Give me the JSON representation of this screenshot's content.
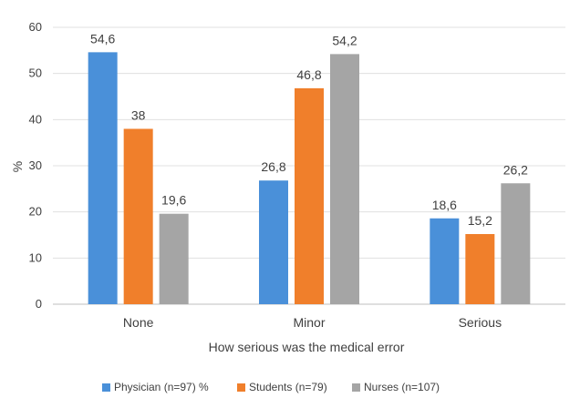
{
  "chart_data": {
    "type": "bar",
    "categories": [
      "None",
      "Minor",
      "Serious"
    ],
    "series": [
      {
        "name": "Physician (n=97) %",
        "values": [
          54.6,
          26.8,
          18.6
        ],
        "labels": [
          "54,6",
          "26,8",
          "18,6"
        ],
        "color": "#4a90d9"
      },
      {
        "name": "Students (n=79)",
        "values": [
          38,
          46.8,
          15.2
        ],
        "labels": [
          "38",
          "46,8",
          "15,2"
        ],
        "color": "#f07f2b"
      },
      {
        "name": "Nurses (n=107)",
        "values": [
          19.6,
          54.2,
          26.2
        ],
        "labels": [
          "19,6",
          "54,2",
          "26,2"
        ],
        "color": "#a5a5a5"
      }
    ],
    "xlabel": "How serious was the medical error",
    "ylabel": "%",
    "ylim": [
      0,
      60
    ],
    "yticks": [
      0,
      10,
      20,
      30,
      40,
      50,
      60
    ],
    "grid": true,
    "legend_position": "bottom"
  }
}
